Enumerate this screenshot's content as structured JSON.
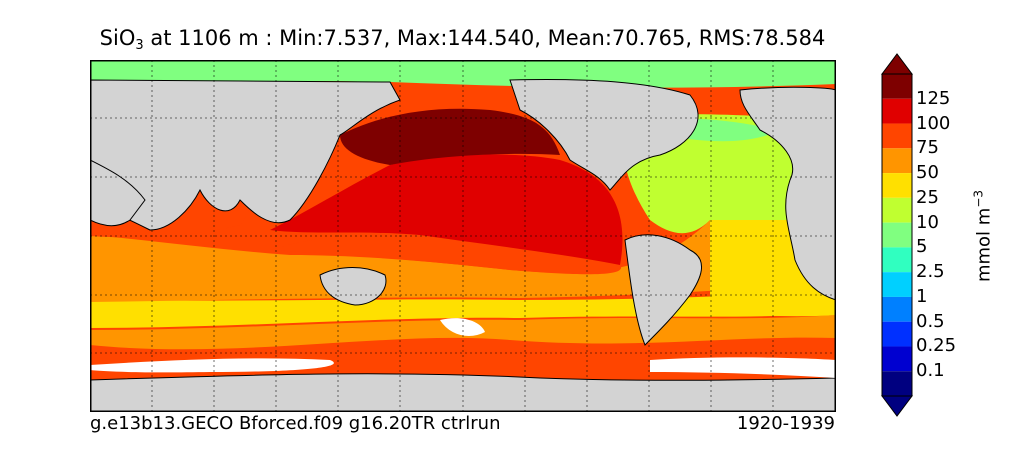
{
  "title": {
    "species_main": "SiO",
    "species_sub": "3",
    "rest": " at 1106 m : Min:7.537, Max:144.540, Mean:70.765, RMS:78.584"
  },
  "case_name": "g.e13b13.GECO Bforced.f09 g16.20TR ctrlrun",
  "years": "1920-1939",
  "colorbar": {
    "labels": [
      "125",
      "100",
      "75",
      "50",
      "25",
      "10",
      "5",
      "2.5",
      "1",
      "0.5",
      "0.25",
      "0.1"
    ],
    "colors": [
      "#7e0000",
      "#e00000",
      "#ff4500",
      "#ff9500",
      "#ffe000",
      "#c0ff30",
      "#80ff80",
      "#30ffc0",
      "#00d0ff",
      "#0080ff",
      "#0030ff",
      "#0000d0",
      "#000080"
    ],
    "units_main": "mmol m",
    "units_sup": "−3"
  },
  "map": {
    "land_color": "#d3d3d3",
    "missing_color": "#ffffff"
  }
}
